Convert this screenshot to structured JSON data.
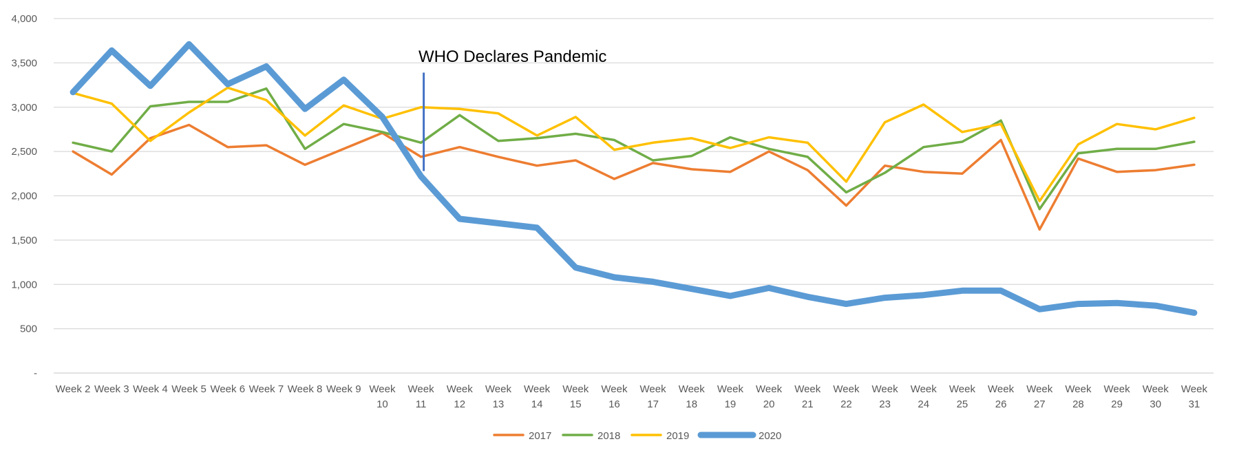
{
  "chart_data": {
    "type": "line",
    "categories": [
      "Week 2",
      "Week 3",
      "Week 4",
      "Week 5",
      "Week 6",
      "Week 7",
      "Week 8",
      "Week 9",
      "Week 10",
      "Week 11",
      "Week 12",
      "Week 13",
      "Week 14",
      "Week 15",
      "Week 16",
      "Week 17",
      "Week 18",
      "Week 19",
      "Week 20",
      "Week 21",
      "Week 22",
      "Week 23",
      "Week 24",
      "Week 25",
      "Week 26",
      "Week 27",
      "Week 28",
      "Week 29",
      "Week 30",
      "Week 31"
    ],
    "series": [
      {
        "name": "2017",
        "color": "#ED7D31",
        "values": [
          2500,
          2240,
          2650,
          2800,
          2550,
          2570,
          2350,
          2530,
          2710,
          2440,
          2550,
          2440,
          2340,
          2400,
          2190,
          2370,
          2300,
          2270,
          2500,
          2290,
          1890,
          2340,
          2270,
          2250,
          2630,
          1620,
          2420,
          2270,
          2290,
          2350
        ]
      },
      {
        "name": "2018",
        "color": "#70AD47",
        "values": [
          2600,
          2500,
          3010,
          3060,
          3060,
          3210,
          2530,
          2810,
          2720,
          2600,
          2910,
          2620,
          2650,
          2700,
          2630,
          2400,
          2450,
          2660,
          2530,
          2440,
          2040,
          2260,
          2550,
          2610,
          2850,
          1850,
          2480,
          2530,
          2530,
          2610
        ]
      },
      {
        "name": "2019",
        "color": "#FFC000",
        "values": [
          3160,
          3040,
          2620,
          2940,
          3220,
          3080,
          2680,
          3020,
          2870,
          3000,
          2980,
          2930,
          2680,
          2890,
          2520,
          2600,
          2650,
          2540,
          2660,
          2600,
          2160,
          2830,
          3030,
          2720,
          2810,
          1940,
          2580,
          2810,
          2750,
          2880
        ]
      },
      {
        "name": "2020",
        "color": "#5B9BD5",
        "values": [
          3170,
          3640,
          3240,
          3710,
          3260,
          3460,
          2980,
          3310,
          2890,
          2220,
          1740,
          1690,
          1640,
          1190,
          1080,
          1030,
          950,
          870,
          960,
          860,
          780,
          850,
          880,
          930,
          930,
          720,
          780,
          790,
          760,
          680
        ]
      }
    ],
    "ylim": [
      0,
      4000
    ],
    "yticks": [
      {
        "value": 0,
        "label": "-"
      },
      {
        "value": 500,
        "label": "500"
      },
      {
        "value": 1000,
        "label": "1,000"
      },
      {
        "value": 1500,
        "label": "1,500"
      },
      {
        "value": 2000,
        "label": "2,000"
      },
      {
        "value": 2500,
        "label": "2,500"
      },
      {
        "value": 3000,
        "label": "3,000"
      },
      {
        "value": 3500,
        "label": "3,500"
      },
      {
        "value": 4000,
        "label": "4,000"
      }
    ],
    "annotation": {
      "text": "WHO Declares Pandemic",
      "category": "Week 11",
      "y_from": 2280,
      "y_to": 3390,
      "color": "#4472C4"
    },
    "grid": true,
    "legend_position": "bottom"
  }
}
